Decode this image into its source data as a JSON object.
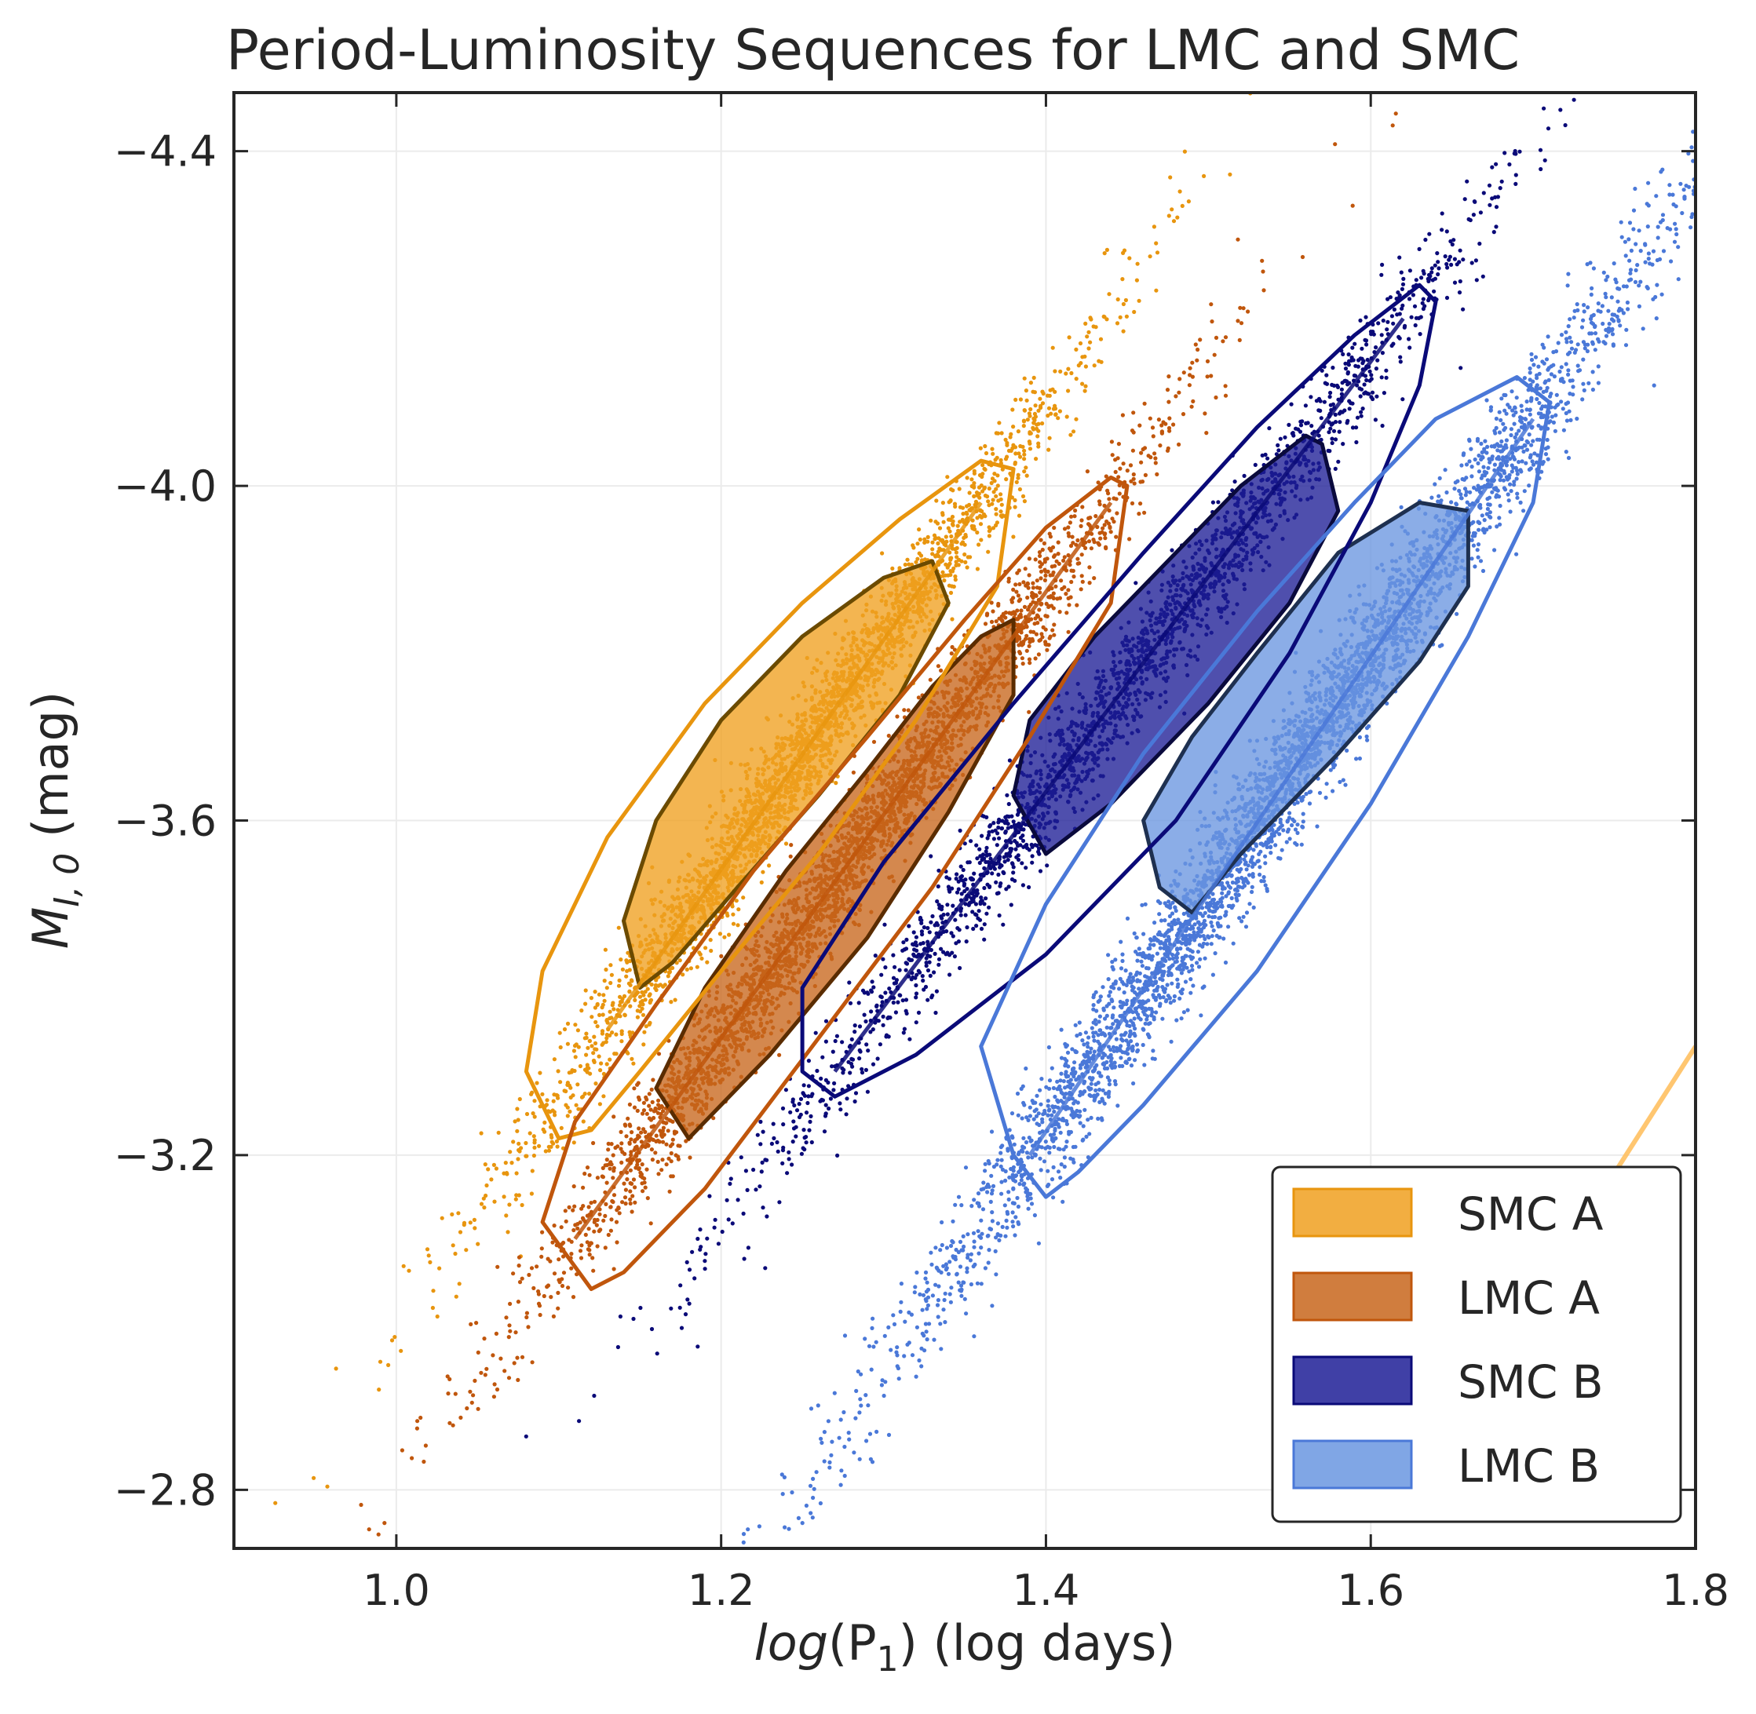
{
  "chart_data": {
    "type": "scatter",
    "title": "Period-Luminosity Sequences for LMC and SMC",
    "xlabel": {
      "italic": "log",
      "prefix": "(P",
      "sub": "1",
      "suffix": ") (log days)"
    },
    "ylabel": {
      "italic": "M",
      "sub": "I, 0",
      "suffix": " (mag)"
    },
    "xlim": [
      0.9,
      1.8
    ],
    "ylim": [
      -2.73,
      -4.47
    ],
    "y_inverted": true,
    "xticks": [
      1.0,
      1.2,
      1.4,
      1.6,
      1.8
    ],
    "xtick_labels": [
      "1.0",
      "1.2",
      "1.4",
      "1.6",
      "1.8"
    ],
    "yticks": [
      -2.8,
      -3.2,
      -3.6,
      -4.0,
      -4.4
    ],
    "ytick_labels": [
      "−2.8",
      "−3.2",
      "−3.6",
      "−4.0",
      "−4.4"
    ],
    "grid": true,
    "legend_position": "lower-right",
    "series": [
      {
        "name": "SMC A",
        "color": "#F0A020",
        "point_color": "#E8950E",
        "edge_color": "#6B4A00",
        "n_points": 2600,
        "spread_along": 0.085,
        "spread_across": 0.035,
        "core": [
          [
            1.15,
            -3.4
          ],
          [
            1.14,
            -3.48
          ],
          [
            1.16,
            -3.6
          ],
          [
            1.2,
            -3.72
          ],
          [
            1.25,
            -3.82
          ],
          [
            1.3,
            -3.89
          ],
          [
            1.33,
            -3.91
          ],
          [
            1.34,
            -3.86
          ],
          [
            1.31,
            -3.75
          ],
          [
            1.26,
            -3.63
          ],
          [
            1.21,
            -3.52
          ],
          [
            1.17,
            -3.43
          ]
        ],
        "outer": [
          [
            1.1,
            -3.22
          ],
          [
            1.08,
            -3.3
          ],
          [
            1.09,
            -3.42
          ],
          [
            1.13,
            -3.58
          ],
          [
            1.19,
            -3.74
          ],
          [
            1.25,
            -3.86
          ],
          [
            1.31,
            -3.96
          ],
          [
            1.36,
            -4.03
          ],
          [
            1.38,
            -4.02
          ],
          [
            1.37,
            -3.88
          ],
          [
            1.32,
            -3.72
          ],
          [
            1.26,
            -3.56
          ],
          [
            1.2,
            -3.42
          ],
          [
            1.15,
            -3.3
          ],
          [
            1.12,
            -3.23
          ]
        ],
        "trend": [
          [
            1.13,
            -3.35
          ],
          [
            1.36,
            -3.98
          ]
        ]
      },
      {
        "name": "LMC A",
        "color": "#C8661C",
        "point_color": "#C0560C",
        "edge_color": "#5A2C00",
        "n_points": 3000,
        "spread_along": 0.095,
        "spread_across": 0.035,
        "core": [
          [
            1.18,
            -3.22
          ],
          [
            1.16,
            -3.28
          ],
          [
            1.19,
            -3.4
          ],
          [
            1.24,
            -3.54
          ],
          [
            1.29,
            -3.66
          ],
          [
            1.33,
            -3.76
          ],
          [
            1.36,
            -3.82
          ],
          [
            1.38,
            -3.84
          ],
          [
            1.38,
            -3.75
          ],
          [
            1.34,
            -3.61
          ],
          [
            1.29,
            -3.46
          ],
          [
            1.23,
            -3.32
          ]
        ],
        "outer": [
          [
            1.12,
            -3.04
          ],
          [
            1.09,
            -3.12
          ],
          [
            1.11,
            -3.24
          ],
          [
            1.16,
            -3.38
          ],
          [
            1.22,
            -3.54
          ],
          [
            1.29,
            -3.7
          ],
          [
            1.35,
            -3.84
          ],
          [
            1.4,
            -3.95
          ],
          [
            1.44,
            -4.01
          ],
          [
            1.45,
            -4.0
          ],
          [
            1.44,
            -3.86
          ],
          [
            1.39,
            -3.7
          ],
          [
            1.33,
            -3.52
          ],
          [
            1.26,
            -3.34
          ],
          [
            1.19,
            -3.16
          ],
          [
            1.14,
            -3.06
          ]
        ],
        "trend": [
          [
            1.11,
            -3.1
          ],
          [
            1.44,
            -3.98
          ]
        ]
      },
      {
        "name": "SMC B",
        "color": "#1E1E96",
        "point_color": "#0A0A78",
        "edge_color": "#0A0A3C",
        "n_points": 2200,
        "spread_along": 0.11,
        "spread_across": 0.035,
        "core": [
          [
            1.4,
            -3.56
          ],
          [
            1.38,
            -3.63
          ],
          [
            1.39,
            -3.72
          ],
          [
            1.43,
            -3.82
          ],
          [
            1.48,
            -3.92
          ],
          [
            1.52,
            -4.0
          ],
          [
            1.56,
            -4.06
          ],
          [
            1.57,
            -4.05
          ],
          [
            1.58,
            -3.97
          ],
          [
            1.55,
            -3.86
          ],
          [
            1.5,
            -3.74
          ],
          [
            1.44,
            -3.62
          ]
        ],
        "outer": [
          [
            1.27,
            -3.27
          ],
          [
            1.25,
            -3.3
          ],
          [
            1.25,
            -3.4
          ],
          [
            1.3,
            -3.55
          ],
          [
            1.38,
            -3.74
          ],
          [
            1.46,
            -3.92
          ],
          [
            1.53,
            -4.07
          ],
          [
            1.59,
            -4.18
          ],
          [
            1.63,
            -4.24
          ],
          [
            1.64,
            -4.22
          ],
          [
            1.63,
            -4.12
          ],
          [
            1.6,
            -3.98
          ],
          [
            1.55,
            -3.8
          ],
          [
            1.48,
            -3.6
          ],
          [
            1.4,
            -3.44
          ],
          [
            1.32,
            -3.32
          ]
        ],
        "trend": [
          [
            1.27,
            -3.3
          ],
          [
            1.62,
            -4.2
          ]
        ]
      },
      {
        "name": "LMC B",
        "color": "#6A96E0",
        "point_color": "#4A78D8",
        "edge_color": "#1E3050",
        "n_points": 3800,
        "spread_along": 0.12,
        "spread_across": 0.04,
        "core": [
          [
            1.49,
            -3.49
          ],
          [
            1.47,
            -3.52
          ],
          [
            1.46,
            -3.6
          ],
          [
            1.49,
            -3.7
          ],
          [
            1.53,
            -3.8
          ],
          [
            1.58,
            -3.92
          ],
          [
            1.63,
            -3.98
          ],
          [
            1.66,
            -3.97
          ],
          [
            1.66,
            -3.88
          ],
          [
            1.63,
            -3.79
          ],
          [
            1.58,
            -3.68
          ],
          [
            1.52,
            -3.56
          ]
        ],
        "outer": [
          [
            1.4,
            -3.15
          ],
          [
            1.38,
            -3.2
          ],
          [
            1.36,
            -3.33
          ],
          [
            1.4,
            -3.5
          ],
          [
            1.46,
            -3.68
          ],
          [
            1.53,
            -3.85
          ],
          [
            1.59,
            -3.98
          ],
          [
            1.64,
            -4.08
          ],
          [
            1.69,
            -4.13
          ],
          [
            1.71,
            -4.1
          ],
          [
            1.7,
            -3.98
          ],
          [
            1.66,
            -3.82
          ],
          [
            1.6,
            -3.62
          ],
          [
            1.53,
            -3.42
          ],
          [
            1.46,
            -3.26
          ],
          [
            1.42,
            -3.18
          ]
        ],
        "trend": [
          [
            1.39,
            -3.2
          ],
          [
            1.7,
            -4.08
          ]
        ]
      }
    ],
    "extra_line": {
      "color": "#FFC060",
      "points": [
        [
          1.645,
          -2.86
        ],
        [
          1.8,
          -3.33
        ]
      ]
    }
  }
}
